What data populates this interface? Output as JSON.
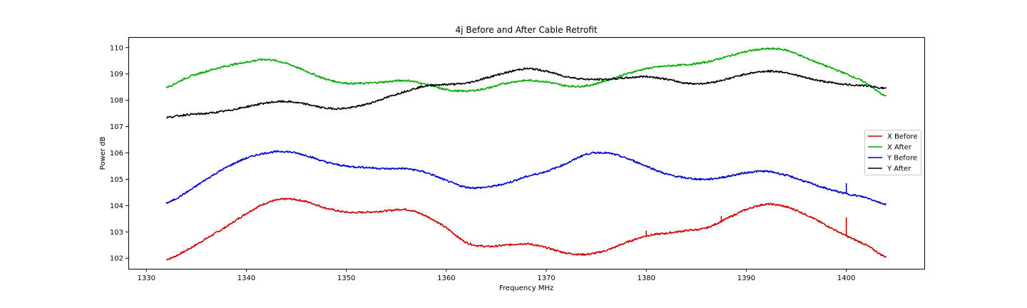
{
  "chart_data": {
    "type": "line",
    "title": "4j Before and After Cable Retrofit",
    "xlabel": "Frequency MHz",
    "ylabel": "Power dB",
    "xlim": [
      1328.2,
      1407.8
    ],
    "ylim": [
      101.6,
      110.4
    ],
    "xticks": [
      1330,
      1340,
      1350,
      1360,
      1370,
      1380,
      1390,
      1400
    ],
    "yticks": [
      102,
      103,
      104,
      105,
      106,
      107,
      108,
      109,
      110
    ],
    "grid": false,
    "legend_position": "center-right",
    "series": [
      {
        "name": "X Before",
        "color": "#cc0000",
        "x": [
          1332,
          1334,
          1336,
          1338,
          1340,
          1342,
          1344,
          1346,
          1348,
          1350,
          1352,
          1354,
          1356,
          1358,
          1360,
          1362,
          1364,
          1366,
          1368,
          1370,
          1372,
          1374,
          1376,
          1378,
          1380,
          1382,
          1384,
          1386,
          1388,
          1390,
          1392,
          1394,
          1396,
          1398,
          1400,
          1402,
          1404
        ],
        "y": [
          101.95,
          102.3,
          102.75,
          103.2,
          103.7,
          104.1,
          104.25,
          104.15,
          103.9,
          103.75,
          103.75,
          103.8,
          103.85,
          103.6,
          103.15,
          102.6,
          102.45,
          102.5,
          102.55,
          102.4,
          102.2,
          102.15,
          102.3,
          102.6,
          102.85,
          102.95,
          103.05,
          103.15,
          103.5,
          103.85,
          104.05,
          103.95,
          103.65,
          103.25,
          102.85,
          102.5,
          102.05
        ],
        "spikes": [
          {
            "x": 1400,
            "y": 103.55
          },
          {
            "x": 1387.5,
            "y": 103.6
          },
          {
            "x": 1380,
            "y": 103.05
          }
        ]
      },
      {
        "name": "X After",
        "color": "#00aa00",
        "x": [
          1332,
          1334,
          1336,
          1338,
          1340,
          1342,
          1344,
          1346,
          1348,
          1350,
          1352,
          1354,
          1356,
          1358,
          1360,
          1362,
          1364,
          1366,
          1368,
          1370,
          1372,
          1374,
          1376,
          1378,
          1380,
          1382,
          1384,
          1386,
          1388,
          1390,
          1392,
          1394,
          1396,
          1398,
          1400,
          1402,
          1404
        ],
        "y": [
          108.5,
          108.85,
          109.1,
          109.3,
          109.45,
          109.55,
          109.4,
          109.1,
          108.8,
          108.65,
          108.65,
          108.7,
          108.75,
          108.6,
          108.4,
          108.35,
          108.45,
          108.65,
          108.75,
          108.7,
          108.55,
          108.55,
          108.75,
          109.0,
          109.2,
          109.3,
          109.35,
          109.45,
          109.65,
          109.85,
          109.95,
          109.9,
          109.6,
          109.3,
          109.0,
          108.65,
          108.15
        ]
      },
      {
        "name": "Y Before",
        "color": "#0000cc",
        "x": [
          1332,
          1334,
          1336,
          1338,
          1340,
          1342,
          1344,
          1346,
          1348,
          1350,
          1352,
          1354,
          1356,
          1358,
          1360,
          1362,
          1364,
          1366,
          1368,
          1370,
          1372,
          1374,
          1376,
          1378,
          1380,
          1382,
          1384,
          1386,
          1388,
          1390,
          1392,
          1394,
          1396,
          1398,
          1400,
          1402,
          1404
        ],
        "y": [
          104.1,
          104.5,
          105.0,
          105.45,
          105.8,
          106.0,
          106.05,
          105.9,
          105.65,
          105.5,
          105.45,
          105.4,
          105.4,
          105.25,
          104.95,
          104.7,
          104.7,
          104.85,
          105.1,
          105.3,
          105.6,
          105.95,
          106.0,
          105.8,
          105.5,
          105.2,
          105.05,
          105.0,
          105.1,
          105.25,
          105.3,
          105.15,
          104.9,
          104.65,
          104.45,
          104.3,
          104.05
        ],
        "spikes": [
          {
            "x": 1400,
            "y": 104.85
          }
        ]
      },
      {
        "name": "Y After",
        "color": "#000000",
        "x": [
          1332,
          1334,
          1336,
          1338,
          1340,
          1342,
          1344,
          1346,
          1348,
          1350,
          1352,
          1354,
          1356,
          1358,
          1360,
          1362,
          1364,
          1366,
          1368,
          1370,
          1372,
          1374,
          1376,
          1378,
          1380,
          1382,
          1384,
          1386,
          1388,
          1390,
          1392,
          1394,
          1396,
          1398,
          1400,
          1402,
          1404
        ],
        "y": [
          107.35,
          107.45,
          107.5,
          107.6,
          107.75,
          107.9,
          107.95,
          107.85,
          107.7,
          107.7,
          107.85,
          108.1,
          108.35,
          108.55,
          108.6,
          108.65,
          108.85,
          109.05,
          109.2,
          109.1,
          108.9,
          108.8,
          108.8,
          108.85,
          108.9,
          108.8,
          108.65,
          108.65,
          108.8,
          109.0,
          109.1,
          109.05,
          108.85,
          108.7,
          108.6,
          108.55,
          108.45
        ]
      }
    ]
  }
}
